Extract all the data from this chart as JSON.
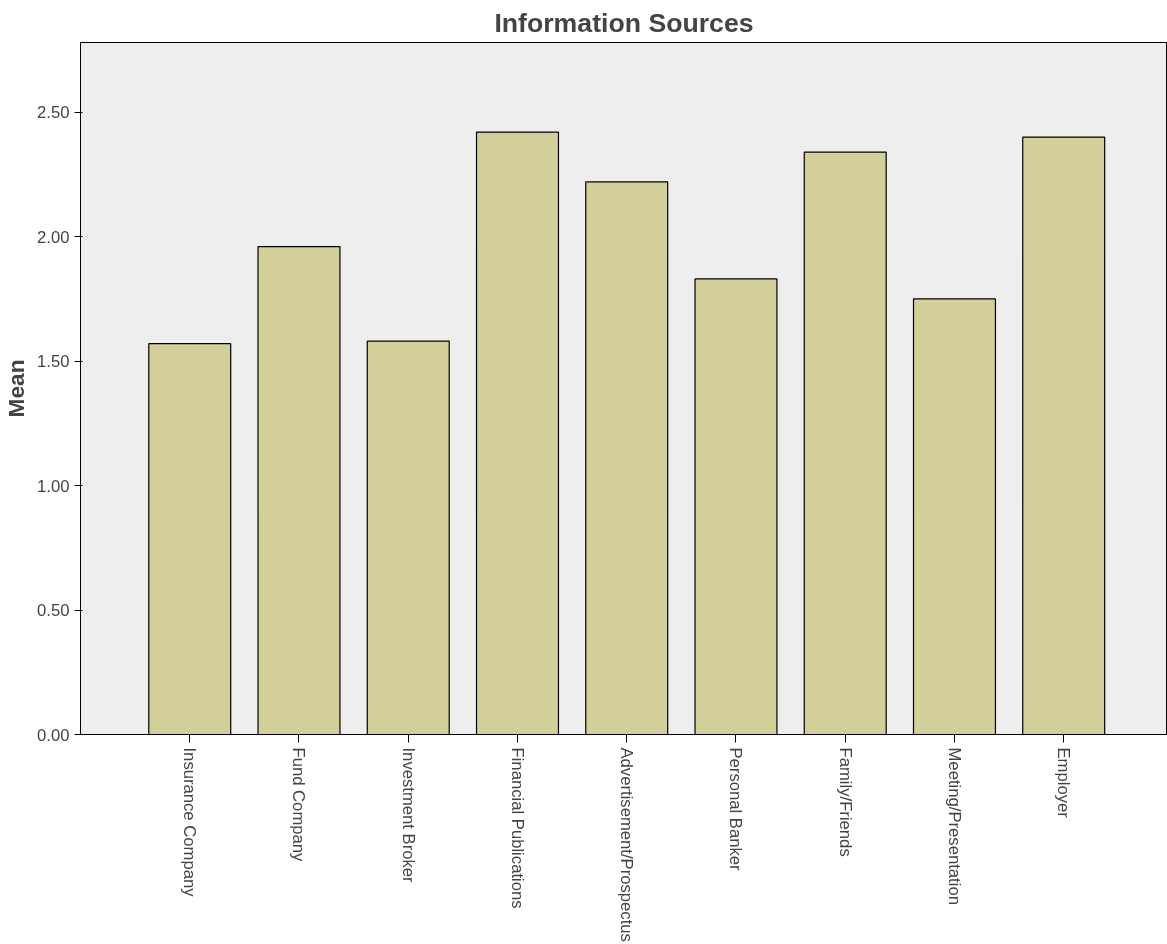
{
  "chart_data": {
    "type": "bar",
    "title": "Information Sources",
    "ylabel": "Mean",
    "categories": [
      "Insurance Company",
      "Fund Company",
      "Investment Broker",
      "Financial Publications",
      "Advertisement/Prospectus",
      "Personal Banker",
      "Family/Friends",
      "Meeting/Presentation",
      "Employer"
    ],
    "values": [
      1.57,
      1.96,
      1.58,
      2.42,
      2.22,
      1.83,
      2.34,
      1.75,
      2.4
    ],
    "color": "#d3cf98",
    "ylim": [
      0,
      2.78
    ],
    "yticks": [
      {
        "value": 0,
        "label": "0.00"
      },
      {
        "value": 0.5,
        "label": "0.50"
      },
      {
        "value": 1,
        "label": "1.00"
      },
      {
        "value": 1.5,
        "label": "1.50"
      },
      {
        "value": 2,
        "label": "2.00"
      },
      {
        "value": 2.5,
        "label": "2.50"
      }
    ],
    "grid": false
  }
}
